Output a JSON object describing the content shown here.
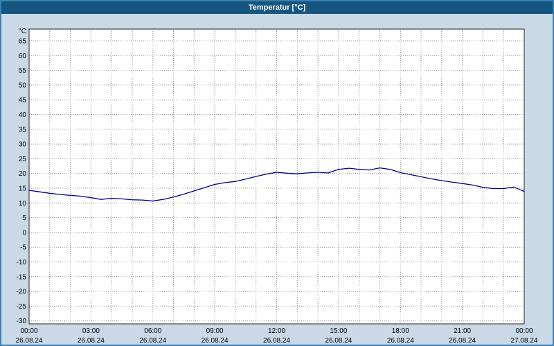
{
  "window": {
    "title": "Temperatur [°C]"
  },
  "colors": {
    "titlebar": "#14567f",
    "window_background": "#c9d9e8",
    "window_border": "#3c7fb3",
    "grid": "#999999",
    "line": "#00008b",
    "plot_background": "#ffffff"
  },
  "chart_data": {
    "type": "line",
    "title": "Temperatur [°C]",
    "xlabel": "",
    "ylabel": "°C",
    "xlim": [
      0,
      24
    ],
    "ylim": [
      -31,
      69
    ],
    "yticks": {
      "min": -30,
      "max": 65,
      "step": 5
    },
    "grid": "dotted, hourly vertical lines and 5°C horizontal lines",
    "legend_position": "none",
    "xticks": [
      {
        "h": 0,
        "time": "00:00",
        "date": "26.08.24"
      },
      {
        "h": 3,
        "time": "03:00",
        "date": "26.08.24"
      },
      {
        "h": 6,
        "time": "06:00",
        "date": "26.08.24"
      },
      {
        "h": 9,
        "time": "09:00",
        "date": "26.08.24"
      },
      {
        "h": 12,
        "time": "12:00",
        "date": "26.08.24"
      },
      {
        "h": 15,
        "time": "15:00",
        "date": "26.08.24"
      },
      {
        "h": 18,
        "time": "18:00",
        "date": "26.08.24"
      },
      {
        "h": 21,
        "time": "21:00",
        "date": "26.08.24"
      },
      {
        "h": 24,
        "time": "00:00",
        "date": "27.08.24"
      }
    ],
    "series": [
      {
        "name": "Temperatur",
        "color": "#00008b",
        "x": [
          0,
          0.5,
          1,
          1.5,
          2,
          2.5,
          3,
          3.5,
          4,
          4.5,
          5,
          5.5,
          6,
          6.5,
          7,
          7.5,
          8,
          8.5,
          9,
          9.5,
          10,
          10.5,
          11,
          11.5,
          12,
          12.5,
          13,
          13.5,
          14,
          14.5,
          15,
          15.5,
          16,
          16.5,
          17,
          17.5,
          18,
          18.5,
          19,
          19.5,
          20,
          20.5,
          21,
          21.5,
          22,
          22.5,
          23,
          23.5,
          24
        ],
        "values": [
          14.3,
          13.8,
          13.3,
          12.9,
          12.6,
          12.3,
          11.8,
          11.2,
          11.6,
          11.4,
          11.1,
          11.0,
          10.7,
          11.2,
          12.0,
          13.0,
          14.1,
          15.2,
          16.3,
          16.9,
          17.3,
          18.1,
          19.0,
          19.8,
          20.4,
          20.1,
          19.9,
          20.2,
          20.4,
          20.2,
          21.4,
          21.8,
          21.4,
          21.2,
          21.9,
          21.4,
          20.3,
          19.6,
          18.9,
          18.2,
          17.6,
          17.1,
          16.6,
          16.1,
          15.3,
          14.9,
          14.9,
          15.4,
          13.9
        ]
      }
    ]
  }
}
